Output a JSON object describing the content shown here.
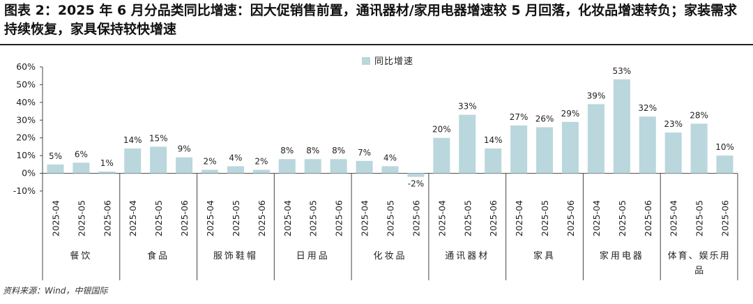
{
  "title": "图表 2：2025 年 6 月分品类同比增速：因大促销售前置，通讯器材/家用电器增速较 5 月回落，化妆品增速转负；家装需求持续恢复，家具保持较快增速",
  "source": "资料来源：Wind，中银国际",
  "chart_data": {
    "type": "bar",
    "legend": "同比增速",
    "legend_position": "top-center",
    "series_color": "#b9d7dd",
    "y_ticks": [
      "60%",
      "50%",
      "40%",
      "30%",
      "20%",
      "10%",
      "0%",
      "-10%"
    ],
    "ylim": [
      -10,
      60
    ],
    "groups": [
      {
        "name": "餐饮",
        "periods": [
          "2025-04",
          "2025-05",
          "2025-06"
        ],
        "values": [
          5,
          6,
          1
        ],
        "labels": [
          "5%",
          "6%",
          "1%"
        ]
      },
      {
        "name": "食品",
        "periods": [
          "2025-04",
          "2025-05",
          "2025-06"
        ],
        "values": [
          14,
          15,
          9
        ],
        "labels": [
          "14%",
          "15%",
          "9%"
        ]
      },
      {
        "name": "服饰鞋帽",
        "periods": [
          "2025-04",
          "2025-05",
          "2025-06"
        ],
        "values": [
          2,
          4,
          2
        ],
        "labels": [
          "2%",
          "4%",
          "2%"
        ]
      },
      {
        "name": "日用品",
        "periods": [
          "2025-04",
          "2025-05",
          "2025-06"
        ],
        "values": [
          8,
          8,
          8
        ],
        "labels": [
          "8%",
          "8%",
          "8%"
        ]
      },
      {
        "name": "化妆品",
        "periods": [
          "2025-04",
          "2025-05",
          "2025-06"
        ],
        "values": [
          7,
          4,
          -2
        ],
        "labels": [
          "7%",
          "4%",
          "-2%"
        ]
      },
      {
        "name": "通讯器材",
        "periods": [
          "2025-04",
          "2025-05",
          "2025-06"
        ],
        "values": [
          20,
          33,
          14
        ],
        "labels": [
          "20%",
          "33%",
          "14%"
        ]
      },
      {
        "name": "家具",
        "periods": [
          "2025-04",
          "2025-05",
          "2025-06"
        ],
        "values": [
          27,
          26,
          29
        ],
        "labels": [
          "27%",
          "26%",
          "29%"
        ]
      },
      {
        "name": "家用电器",
        "periods": [
          "2025-04",
          "2025-05",
          "2025-06"
        ],
        "values": [
          39,
          53,
          32
        ],
        "labels": [
          "39%",
          "53%",
          "32%"
        ]
      },
      {
        "name": "体育、娱乐用品",
        "periods": [
          "2025-04",
          "2025-05",
          "2025-06"
        ],
        "values": [
          23,
          28,
          10
        ],
        "labels": [
          "23%",
          "28%",
          "10%"
        ]
      }
    ]
  }
}
